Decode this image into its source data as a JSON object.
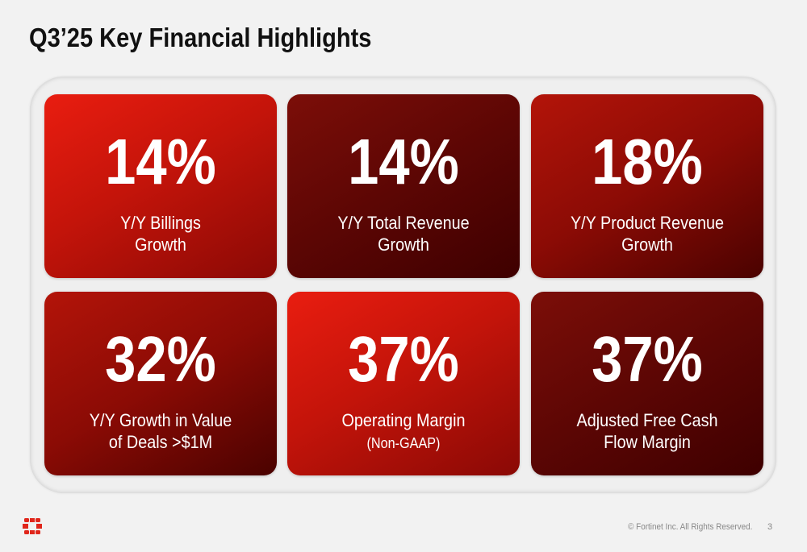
{
  "title": "Q3’25 Key Financial Highlights",
  "cards": [
    {
      "value": "14%",
      "label_line1": "Y/Y Billings",
      "label_line2": "Growth",
      "style": "bright"
    },
    {
      "value": "14%",
      "label_line1": "Y/Y Total Revenue",
      "label_line2": "Growth",
      "style": "dark"
    },
    {
      "value": "18%",
      "label_line1": "Y/Y Product Revenue",
      "label_line2": "Growth",
      "style": "medium"
    },
    {
      "value": "32%",
      "label_line1": "Y/Y Growth in Value",
      "label_line2": "of Deals >$1M",
      "style": "medium"
    },
    {
      "value": "37%",
      "label_line1": "Operating Margin",
      "label_line2": "(Non-GAAP)",
      "style": "bright"
    },
    {
      "value": "37%",
      "label_line1": "Adjusted Free Cash",
      "label_line2": "Flow Margin",
      "style": "dark"
    }
  ],
  "footer": {
    "copyright": "© Fortinet Inc. All Rights Reserved.",
    "page_number": "3",
    "logo_icon": "fortinet-logo-icon"
  },
  "colors": {
    "brand_red": "#e91d10",
    "dark_red": "#3e0000"
  }
}
